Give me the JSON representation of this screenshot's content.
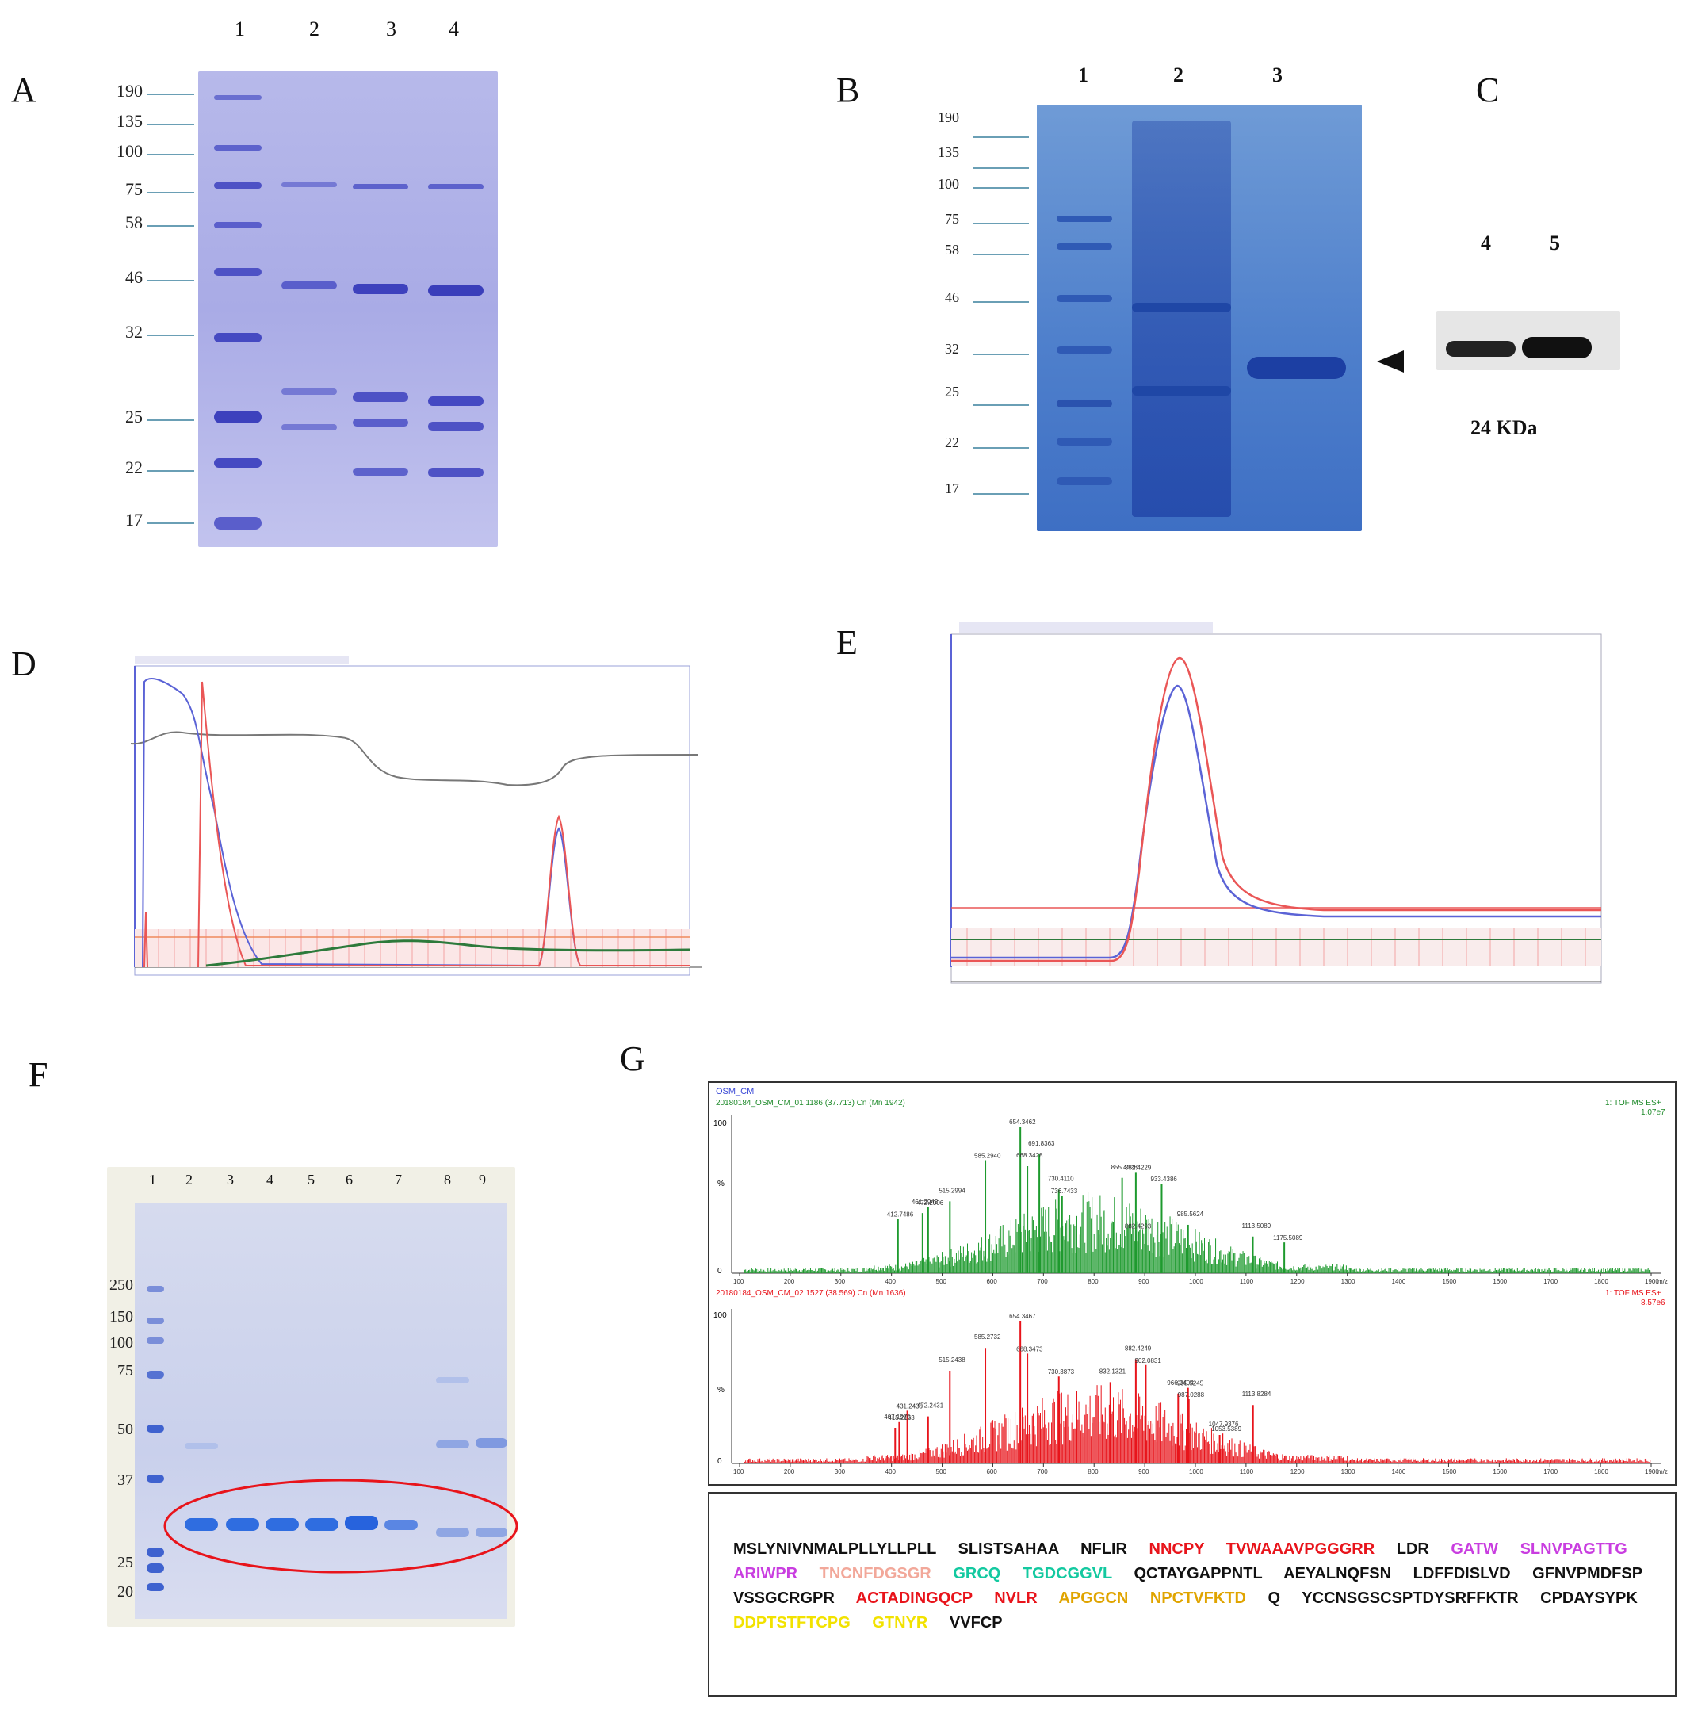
{
  "panels": {
    "A": "A",
    "B": "B",
    "C": "C",
    "D": "D",
    "E": "E",
    "F": "F",
    "G": "G"
  },
  "panelA": {
    "lanes": [
      "1",
      "2",
      "3",
      "4"
    ],
    "markers": [
      "190",
      "135",
      "100",
      "75",
      "58",
      "46",
      "32",
      "25",
      "22",
      "17"
    ]
  },
  "panelB": {
    "lanes": [
      "1",
      "2",
      "3"
    ],
    "markers": [
      "190",
      "135",
      "100",
      "75",
      "58",
      "46",
      "32",
      "25",
      "22",
      "17"
    ]
  },
  "panelC": {
    "lanes": [
      "4",
      "5"
    ],
    "size_label": "24 KDa"
  },
  "panelF": {
    "lanes": [
      "1",
      "2",
      "3",
      "4",
      "5",
      "6",
      "7",
      "8",
      "9"
    ],
    "markers": [
      "250",
      "150",
      "100",
      "75",
      "50",
      "37",
      "25",
      "20"
    ]
  },
  "panelG": {
    "sample_name": "OSM_CM",
    "spectrum1": {
      "header": "20180184_OSM_CM_01 1186 (37.713) Cn (Mn 1942)",
      "mode": "1: TOF MS ES+",
      "intensity": "1.07e7",
      "peaks": [
        "654.3462",
        "691.8363",
        "585.2940",
        "668.3428",
        "882.4229",
        "855.4128",
        "933.4386",
        "730.4110",
        "736.7433",
        "515.2994",
        "472.2906",
        "461.2943",
        "412.7486",
        "985.5624",
        "882.4293",
        "1113.5089",
        "1175.5089"
      ]
    },
    "spectrum2": {
      "header": "20180184_OSM_CM_02 1527 (38.569) Cn (Mn 1636)",
      "mode": "1: TOF MS ES+",
      "intensity": "8.57e6",
      "peaks": [
        "654.3467",
        "585.2732",
        "668.3473",
        "882.4249",
        "902.0831",
        "515.2438",
        "730.3873",
        "832.1321",
        "985.5245",
        "966.0404",
        "987.0288",
        "1113.8284",
        "431.2436",
        "472.2431",
        "415.2163",
        "407.1970",
        "1053.5389",
        "1047.9376"
      ]
    },
    "axis_ticks": [
      "100",
      "200",
      "300",
      "400",
      "500",
      "600",
      "700",
      "800",
      "900",
      "1000",
      "1100",
      "1200",
      "1300",
      "1400",
      "1500",
      "1600",
      "1700",
      "1800",
      "1900"
    ],
    "axis_unit": "m/z",
    "y_ticks": [
      "100",
      "%",
      "0"
    ],
    "sequence": [
      {
        "text": "MSLYNIVNMALPLLYLLPLL SLISTSAHAA NFLIR",
        "color": "#111111"
      },
      {
        "text": "NNCPY TVWAAAVPGGGRR",
        "color": "#e8141b"
      },
      {
        "text": "LDR",
        "color": "#111111"
      },
      {
        "text": "GATW SLNVPAGTTG ARIWPR",
        "color": "#c93ee0"
      },
      {
        "text": "TNCNFDGSGR",
        "color": "#f2a89a"
      },
      {
        "text": "GRCQ TGDCGGVL",
        "color": "#13c9a0"
      },
      {
        "text": "QCTAYGAPPNTL AEYALNQFSN LDFFDISLVD GFNVPMDFSP VSSGCRGPR",
        "color": "#111111"
      },
      {
        "text": "ACTADINGQCP NVLR",
        "color": "#e8141b"
      },
      {
        "text": "APGGCN NPCTVFKTD",
        "color": "#e0a400"
      },
      {
        "text": "Q YCCNSGSCSPTDYSRFFKTR CPDAYSYPK",
        "color": "#111111"
      },
      {
        "text": "DDPTSTFTCPG GTNYR",
        "color": "#f2e200"
      },
      {
        "text": "VVFCP",
        "color": "#111111"
      }
    ]
  }
}
